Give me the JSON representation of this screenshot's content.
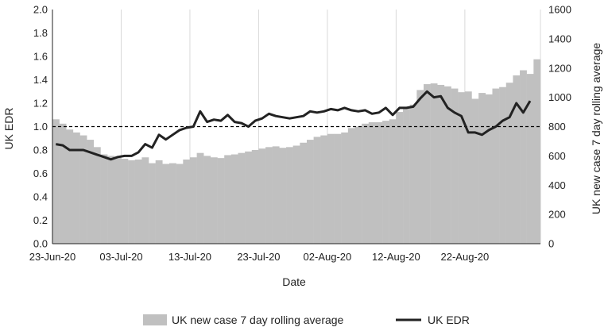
{
  "chart_data": {
    "type": "bar+line",
    "title": "",
    "xlabel": "Date",
    "ylabel_left": "UK EDR",
    "ylabel_right": "UK new case 7 day rolling average",
    "ylim_left": [
      0,
      2.0
    ],
    "ylim_right": [
      0,
      1600
    ],
    "yticks_left": [
      "0.0",
      "0.2",
      "0.4",
      "0.6",
      "0.8",
      "1.0",
      "1.2",
      "1.4",
      "1.6",
      "1.8",
      "2.0"
    ],
    "yticks_right": [
      "0",
      "200",
      "400",
      "600",
      "800",
      "1000",
      "1200",
      "1400",
      "1600"
    ],
    "xtick_labels": [
      "23-Jun-20",
      "03-Jul-20",
      "13-Jul-20",
      "23-Jul-20",
      "02-Aug-20",
      "12-Aug-20",
      "22-Aug-20"
    ],
    "xtick_day_index": [
      0,
      10,
      20,
      30,
      40,
      50,
      60
    ],
    "reference_line": {
      "y": 1.0,
      "style": "dashed",
      "color": "#000000"
    },
    "grid": "vertical",
    "legend_position": "bottom",
    "series": [
      {
        "name": "UK new case 7 day rolling average",
        "type": "bar",
        "axis": "right",
        "color": "#c0c0c0",
        "values": [
          850,
          820,
          780,
          760,
          740,
          710,
          660,
          610,
          600,
          590,
          580,
          570,
          575,
          590,
          550,
          570,
          545,
          550,
          545,
          575,
          590,
          620,
          600,
          590,
          585,
          605,
          610,
          620,
          630,
          640,
          650,
          660,
          665,
          655,
          660,
          670,
          690,
          710,
          730,
          740,
          750,
          750,
          760,
          790,
          800,
          820,
          830,
          830,
          840,
          850,
          900,
          930,
          950,
          1050,
          1090,
          1095,
          1085,
          1075,
          1060,
          1035,
          1040,
          990,
          1030,
          1020,
          1060,
          1070,
          1100,
          1150,
          1185,
          1160,
          1260
        ]
      },
      {
        "name": "UK EDR",
        "type": "line",
        "axis": "left",
        "color": "#222222",
        "values": [
          0.85,
          0.84,
          0.8,
          0.8,
          0.8,
          0.78,
          0.76,
          0.74,
          0.72,
          0.74,
          0.75,
          0.75,
          0.78,
          0.85,
          0.82,
          0.93,
          0.89,
          0.93,
          0.97,
          0.99,
          1.0,
          1.13,
          1.04,
          1.06,
          1.05,
          1.1,
          1.04,
          1.03,
          1.0,
          1.05,
          1.07,
          1.11,
          1.09,
          1.08,
          1.07,
          1.08,
          1.09,
          1.13,
          1.12,
          1.13,
          1.15,
          1.14,
          1.16,
          1.14,
          1.13,
          1.14,
          1.11,
          1.12,
          1.16,
          1.1,
          1.16,
          1.16,
          1.17,
          1.24,
          1.3,
          1.25,
          1.26,
          1.16,
          1.12,
          1.09,
          0.95,
          0.95,
          0.93,
          0.97,
          1.0,
          1.05,
          1.08,
          1.2,
          1.12,
          1.22
        ]
      }
    ]
  }
}
